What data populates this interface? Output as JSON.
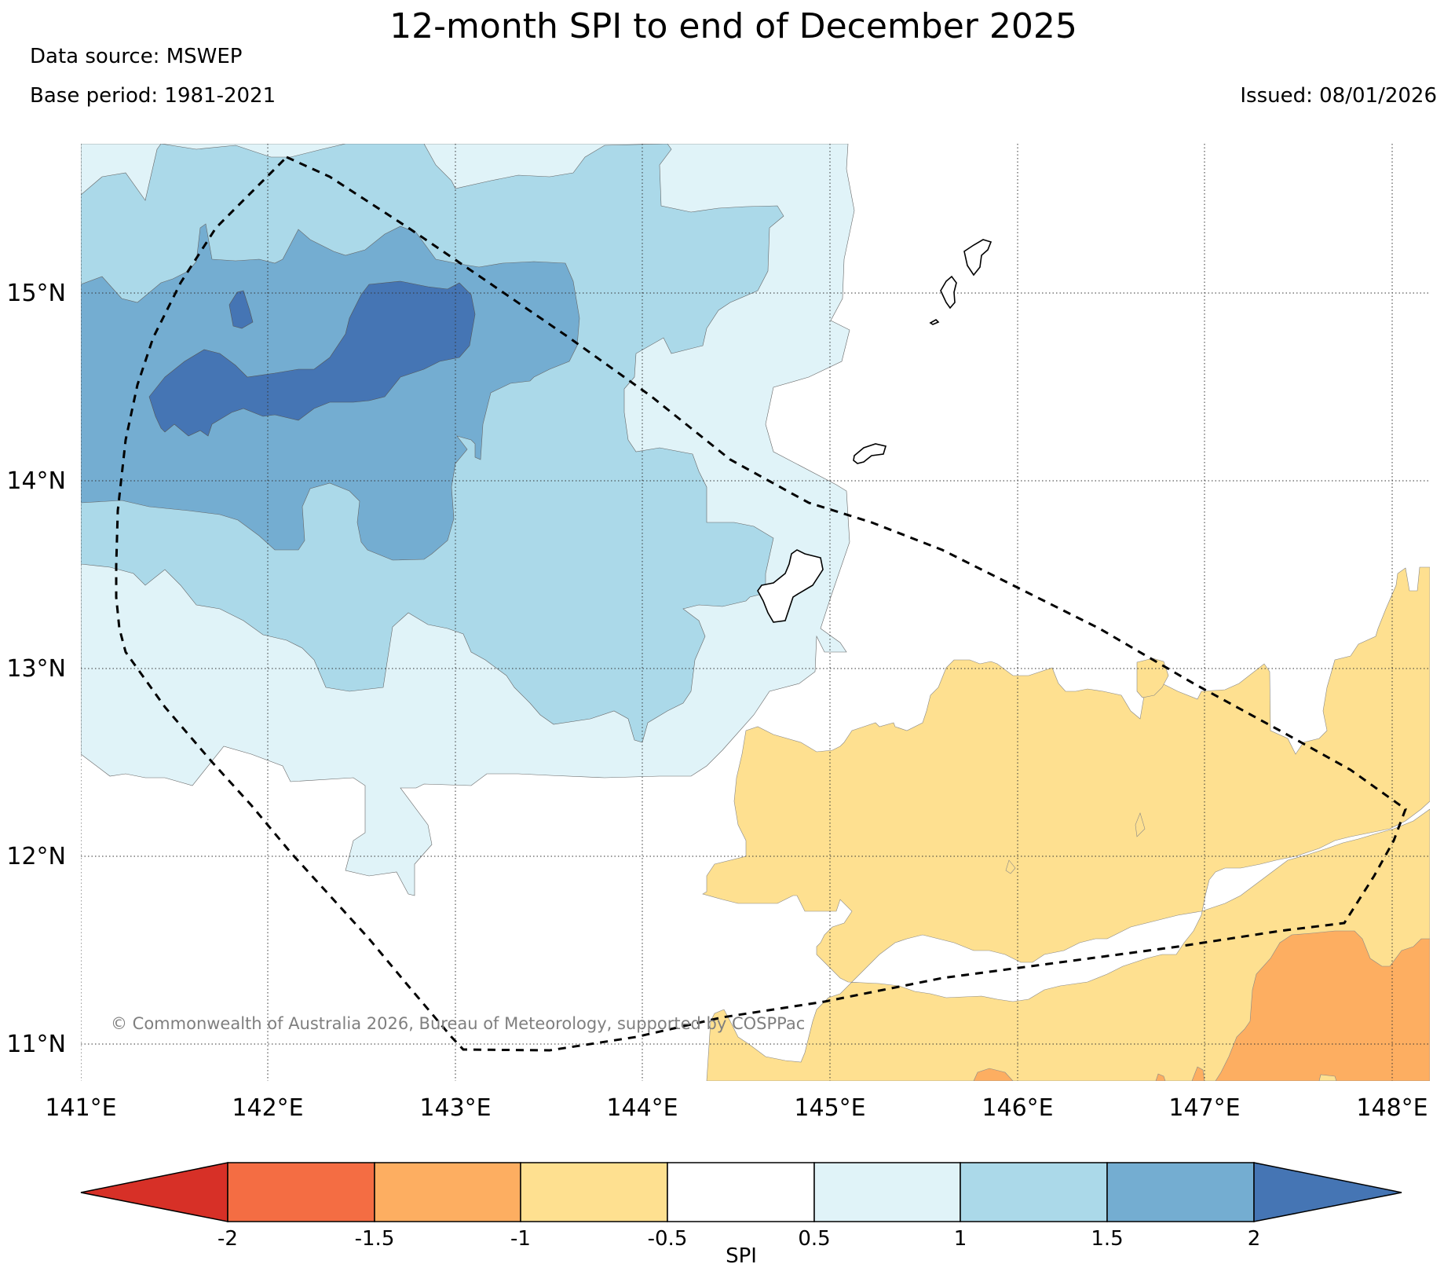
{
  "header": {
    "title": "12-month SPI to end of December 2025",
    "source": "Data source: MSWEP",
    "base_period": "Base period: 1981-2021",
    "issued": "Issued: 08/01/2026"
  },
  "credit": "© Commonwealth of Australia 2026, Bureau of Meteorology, supported by COSPPac",
  "map": {
    "lon_ticks": [
      "141°E",
      "142°E",
      "143°E",
      "144°E",
      "145°E",
      "146°E",
      "147°E",
      "148°E"
    ],
    "lat_ticks": [
      "11°N",
      "12°N",
      "13°N",
      "14°N",
      "15°N"
    ],
    "lon_range": [
      141.0,
      148.2
    ],
    "lat_range": [
      10.8,
      15.8
    ]
  },
  "colorbar": {
    "label": "SPI",
    "ticks": [
      "-2",
      "-1.5",
      "-1",
      "-0.5",
      "0.5",
      "1",
      "1.5",
      "2"
    ],
    "colors": {
      "below_-2": "#d73027",
      "-2_-1.5": "#f46d43",
      "-1.5_-1": "#fdae61",
      "-1_-0.5": "#fee090",
      "-0.5_0.5": "#ffffff",
      "0.5_1": "#e0f3f8",
      "1_1.5": "#abd9e9",
      "1.5_2": "#74add1",
      "above_2": "#4575b4"
    }
  }
}
